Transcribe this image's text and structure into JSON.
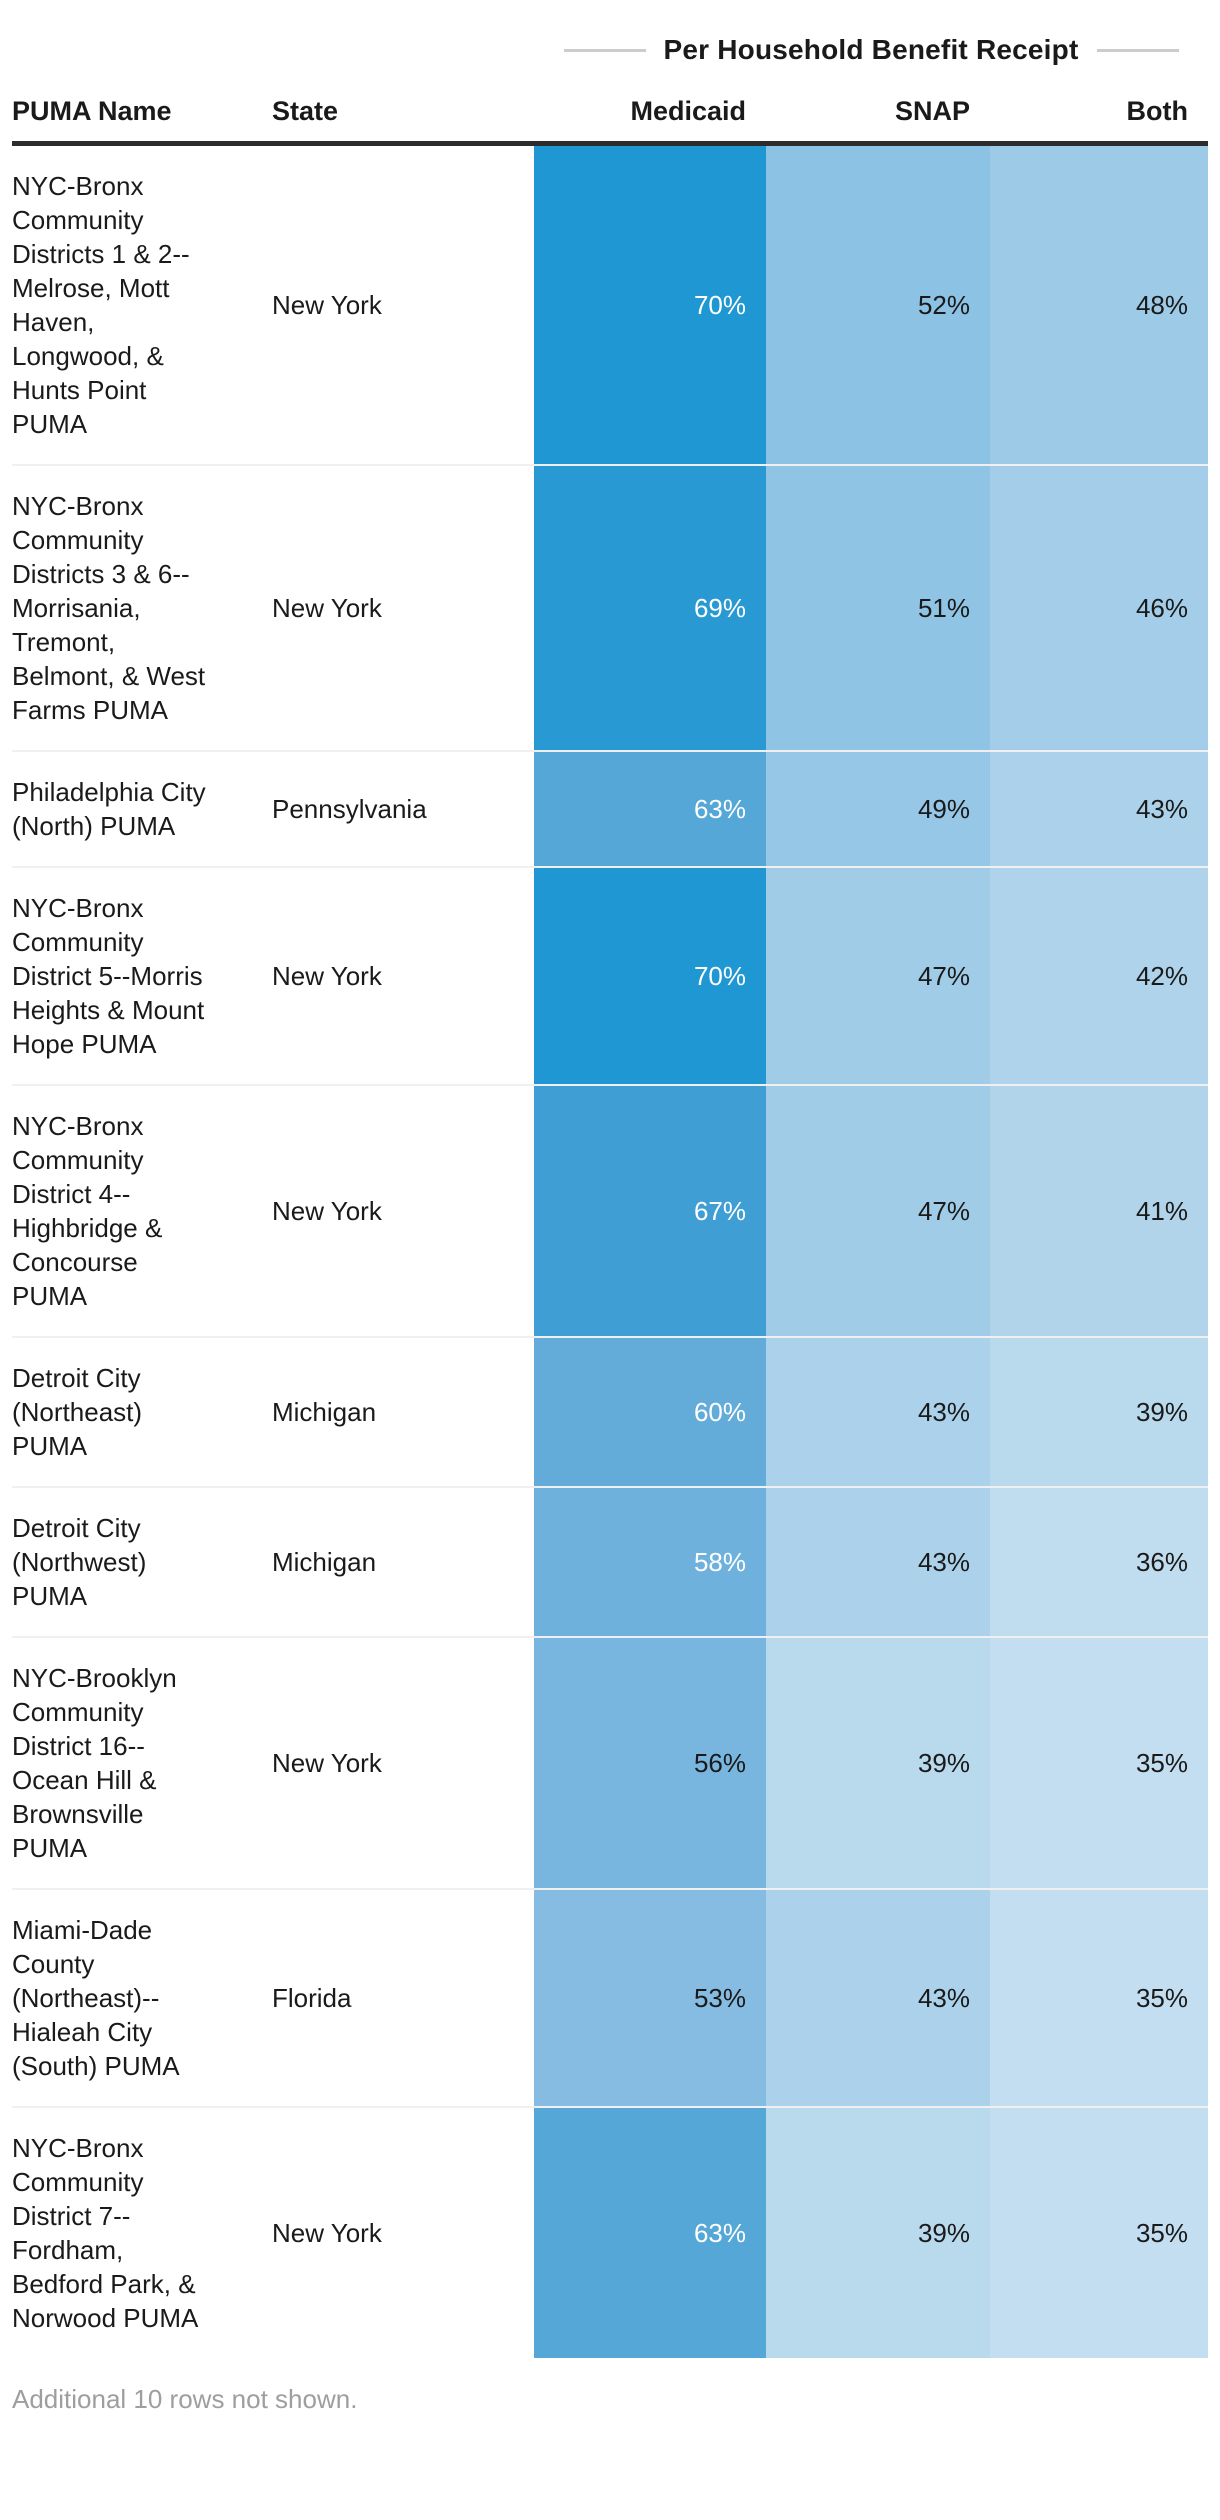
{
  "table": {
    "group_header": "Per Household Benefit Receipt",
    "columns": [
      {
        "label": "PUMA Name"
      },
      {
        "label": "State"
      },
      {
        "label": "Medicaid"
      },
      {
        "label": "SNAP"
      },
      {
        "label": "Both"
      }
    ],
    "rows": [
      {
        "puma": "NYC-Bronx Community Districts 1 & 2--Melrose, Mott Haven, Longwood, & Hunts Point PUMA",
        "state": "New York",
        "medicaid": {
          "value": "70%",
          "bg": "#1f97d3",
          "fg": "#ffffff"
        },
        "snap": {
          "value": "52%",
          "bg": "#8cc2e4",
          "fg": "#1a1a1a"
        },
        "both": {
          "value": "48%",
          "bg": "#9dcae7",
          "fg": "#1a1a1a"
        }
      },
      {
        "puma": "NYC-Bronx Community Districts 3 & 6--Morrisania, Tremont, Belmont, & West Farms PUMA",
        "state": "New York",
        "medicaid": {
          "value": "69%",
          "bg": "#2999d3",
          "fg": "#ffffff"
        },
        "snap": {
          "value": "51%",
          "bg": "#90c4e5",
          "fg": "#1a1a1a"
        },
        "both": {
          "value": "46%",
          "bg": "#a3cde8",
          "fg": "#1a1a1a"
        }
      },
      {
        "puma": "Philadelphia City (North) PUMA",
        "state": "Pennsylvania",
        "medicaid": {
          "value": "63%",
          "bg": "#55a7d8",
          "fg": "#ffffff"
        },
        "snap": {
          "value": "49%",
          "bg": "#97c7e6",
          "fg": "#1a1a1a"
        },
        "both": {
          "value": "43%",
          "bg": "#abd2ea",
          "fg": "#1a1a1a"
        }
      },
      {
        "puma": "NYC-Bronx Community District 5--Morris Heights & Mount Hope PUMA",
        "state": "New York",
        "medicaid": {
          "value": "70%",
          "bg": "#1f97d3",
          "fg": "#ffffff"
        },
        "snap": {
          "value": "47%",
          "bg": "#a0cce8",
          "fg": "#1a1a1a"
        },
        "both": {
          "value": "42%",
          "bg": "#aed3eb",
          "fg": "#1a1a1a"
        }
      },
      {
        "puma": "NYC-Bronx Community District 4--Highbridge & Concourse PUMA",
        "state": "New York",
        "medicaid": {
          "value": "67%",
          "bg": "#3f9fd5",
          "fg": "#ffffff"
        },
        "snap": {
          "value": "47%",
          "bg": "#a0cce8",
          "fg": "#1a1a1a"
        },
        "both": {
          "value": "41%",
          "bg": "#b1d4eb",
          "fg": "#1a1a1a"
        }
      },
      {
        "puma": "Detroit City (Northeast) PUMA",
        "state": "Michigan",
        "medicaid": {
          "value": "60%",
          "bg": "#63acda",
          "fg": "#ffffff"
        },
        "snap": {
          "value": "43%",
          "bg": "#abd2ea",
          "fg": "#1a1a1a"
        },
        "both": {
          "value": "39%",
          "bg": "#b9d9ed",
          "fg": "#1a1a1a"
        }
      },
      {
        "puma": "Detroit City (Northwest) PUMA",
        "state": "Michigan",
        "medicaid": {
          "value": "58%",
          "bg": "#6fb1dd",
          "fg": "#ffffff"
        },
        "snap": {
          "value": "43%",
          "bg": "#abd2ea",
          "fg": "#1a1a1a"
        },
        "both": {
          "value": "36%",
          "bg": "#c0dcef",
          "fg": "#1a1a1a"
        }
      },
      {
        "puma": "NYC-Brooklyn Community District 16--Ocean Hill & Brownsville PUMA",
        "state": "New York",
        "medicaid": {
          "value": "56%",
          "bg": "#79b6df",
          "fg": "#1a1a1a"
        },
        "snap": {
          "value": "39%",
          "bg": "#b9d9ed",
          "fg": "#1a1a1a"
        },
        "both": {
          "value": "35%",
          "bg": "#c3def0",
          "fg": "#1a1a1a"
        }
      },
      {
        "puma": "Miami-Dade County (Northeast)--Hialeah City (South) PUMA",
        "state": "Florida",
        "medicaid": {
          "value": "53%",
          "bg": "#86bce2",
          "fg": "#1a1a1a"
        },
        "snap": {
          "value": "43%",
          "bg": "#abd2ea",
          "fg": "#1a1a1a"
        },
        "both": {
          "value": "35%",
          "bg": "#c3def0",
          "fg": "#1a1a1a"
        }
      },
      {
        "puma": "NYC-Bronx Community District 7--Fordham, Bedford Park, & Norwood PUMA",
        "state": "New York",
        "medicaid": {
          "value": "63%",
          "bg": "#55a7d8",
          "fg": "#ffffff"
        },
        "snap": {
          "value": "39%",
          "bg": "#b9d9ed",
          "fg": "#1a1a1a"
        },
        "both": {
          "value": "35%",
          "bg": "#c3def0",
          "fg": "#1a1a1a"
        }
      }
    ],
    "footer_note": "Additional 10 rows not shown."
  },
  "colors": {
    "rule_line": "#cccccc",
    "header_rule": "#2d2d2d",
    "footer_text": "#9e9e9e",
    "heat_max": "#1f97d3",
    "heat_min": "#c3def0"
  },
  "chart_data": {
    "type": "table",
    "title": "Per Household Benefit Receipt",
    "columns": [
      "PUMA Name",
      "State",
      "Medicaid",
      "SNAP",
      "Both"
    ],
    "value_unit": "%",
    "rows": [
      [
        "NYC-Bronx Community Districts 1 & 2--Melrose, Mott Haven, Longwood, & Hunts Point PUMA",
        "New York",
        70,
        52,
        48
      ],
      [
        "NYC-Bronx Community Districts 3 & 6--Morrisania, Tremont, Belmont, & West Farms PUMA",
        "New York",
        69,
        51,
        46
      ],
      [
        "Philadelphia City (North) PUMA",
        "Pennsylvania",
        63,
        49,
        43
      ],
      [
        "NYC-Bronx Community District 5--Morris Heights & Mount Hope PUMA",
        "New York",
        70,
        47,
        42
      ],
      [
        "NYC-Bronx Community District 4--Highbridge & Concourse PUMA",
        "New York",
        67,
        47,
        41
      ],
      [
        "Detroit City (Northeast) PUMA",
        "Michigan",
        60,
        43,
        39
      ],
      [
        "Detroit City (Northwest) PUMA",
        "Michigan",
        58,
        43,
        36
      ],
      [
        "NYC-Brooklyn Community District 16--Ocean Hill & Brownsville PUMA",
        "New York",
        56,
        39,
        35
      ],
      [
        "Miami-Dade County (Northeast)--Hialeah City (South) PUMA",
        "Florida",
        53,
        43,
        35
      ],
      [
        "NYC-Bronx Community District 7--Fordham, Bedford Park, & Norwood PUMA",
        "New York",
        63,
        39,
        35
      ]
    ],
    "note": "Additional 10 rows not shown.",
    "layout": {
      "heatmap_columns": [
        "Medicaid",
        "SNAP",
        "Both"
      ],
      "color_scale": "sequential blues, darker = higher value",
      "legend": "none",
      "grid": "row dividers only"
    }
  }
}
